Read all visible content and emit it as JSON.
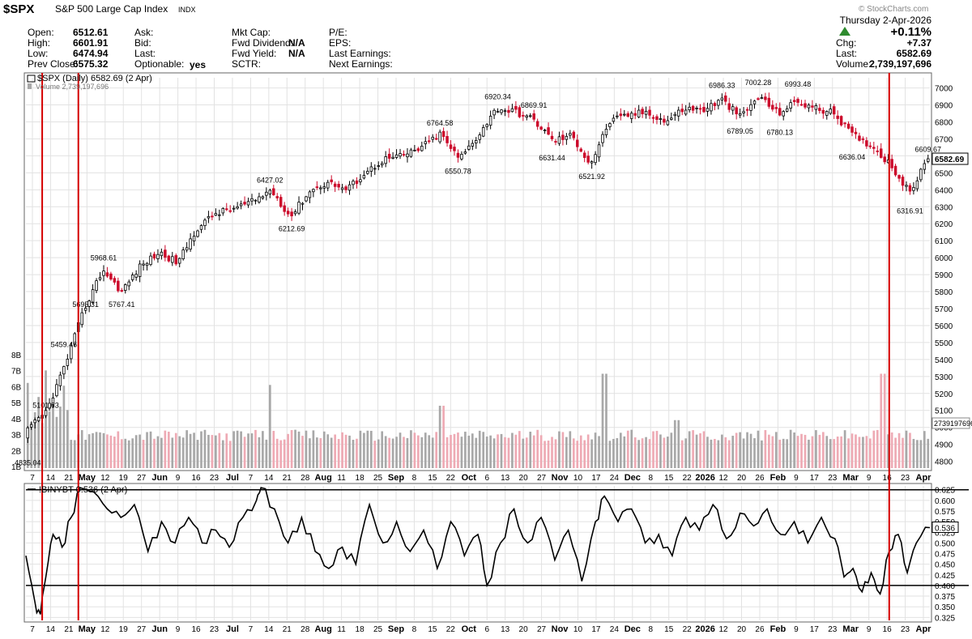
{
  "header": {
    "symbol": "$SPX",
    "name": "S&P 500 Large Cap Index",
    "exchange": "INDX",
    "watermark": "© StockCharts.com",
    "date": "Thursday  2-Apr-2026",
    "change_pct": "+0.11%",
    "fields": {
      "open_label": "Open:",
      "open_value": "6512.61",
      "high_label": "High:",
      "high_value": "6601.91",
      "low_label": "Low:",
      "low_value": "6474.94",
      "prev_label": "Prev Close:",
      "prev_value": "6575.32",
      "ask_label": "Ask:",
      "bid_label": "Bid:",
      "last_label": "Last:",
      "optionable_label": "Optionable:",
      "optionable_value": "yes",
      "mktcap_label": "Mkt Cap:",
      "fwddiv_label": "Fwd Dividend:",
      "fwddiv_value": "N/A",
      "fwdyield_label": "Fwd Yield:",
      "fwdyield_value": "N/A",
      "sctr_label": "SCTR:",
      "pe_label": "P/E:",
      "eps_label": "EPS:",
      "lastearn_label": "Last Earnings:",
      "nextearn_label": "Next Earnings:",
      "chg_label": "Chg:",
      "chg_value": "+7.37",
      "last2_label": "Last:",
      "last2_value": "6582.69",
      "volume_label": "Volume:",
      "volume_value": "2,739,197,696"
    },
    "legend_main": "$SPX (Daily) 6582.69 (2 Apr)",
    "legend_volume": "Volume 2,739,197,696",
    "legend_indicator": "!BINYBT 0.536 (2 Apr)"
  },
  "colors": {
    "up": "#000000",
    "down": "#cc0a2b",
    "volume_up": "#a8a8a8",
    "volume_down": "#eeaab4",
    "marker_line": "#d40000",
    "grid": "#e2e2e2"
  },
  "chart_data": [
    {
      "type": "candlestick",
      "title": "$SPX (Daily) 6582.69 (2 Apr)",
      "y_ticks": [
        4800,
        4900,
        5000,
        5100,
        5200,
        5300,
        5400,
        5500,
        5600,
        5700,
        5800,
        5900,
        6000,
        6100,
        6200,
        6300,
        6400,
        6500,
        6600,
        6700,
        6800,
        6900,
        7000
      ],
      "ylim": [
        4760,
        7060
      ],
      "last_price_label": "6582.69",
      "keypoints": [
        {
          "label": "4835.04",
          "close": 4982
        },
        {
          "label": "5101.63",
          "close": 5095
        },
        {
          "label": "5459.46",
          "close": 5370
        },
        {
          "label": "5695.31",
          "close": 5695
        },
        {
          "label": "5968.61",
          "close": 5930
        },
        {
          "label": "5767.41",
          "close": 5800
        },
        {
          "label": "",
          "close": 5950
        },
        {
          "label": "",
          "close": 6030
        },
        {
          "label": "",
          "close": 5970
        },
        {
          "label": "",
          "close": 6170
        },
        {
          "label": "",
          "close": 6260
        },
        {
          "label": "",
          "close": 6290
        },
        {
          "label": "",
          "close": 6330
        },
        {
          "label": "6427.02",
          "close": 6400
        },
        {
          "label": "6212.69",
          "close": 6240
        },
        {
          "label": "",
          "close": 6390
        },
        {
          "label": "",
          "close": 6445
        },
        {
          "label": "",
          "close": 6400
        },
        {
          "label": "",
          "close": 6500
        },
        {
          "label": "",
          "close": 6580
        },
        {
          "label": "",
          "close": 6600
        },
        {
          "label": "",
          "close": 6650
        },
        {
          "label": "6764.58",
          "close": 6730
        },
        {
          "label": "6550.78",
          "close": 6580
        },
        {
          "label": "",
          "close": 6720
        },
        {
          "label": "6920.34",
          "close": 6880
        },
        {
          "label": "",
          "close": 6860
        },
        {
          "label": "6869.91",
          "close": 6810
        },
        {
          "label": "6631.44",
          "close": 6690
        },
        {
          "label": "",
          "close": 6720
        },
        {
          "label": "6521.92",
          "close": 6550
        },
        {
          "label": "",
          "close": 6800
        },
        {
          "label": "",
          "close": 6840
        },
        {
          "label": "",
          "close": 6860
        },
        {
          "label": "",
          "close": 6800
        },
        {
          "label": "",
          "close": 6880
        },
        {
          "label": "",
          "close": 6870
        },
        {
          "label": "6986.33",
          "close": 6930
        },
        {
          "label": "6789.05",
          "close": 6830
        },
        {
          "label": "7002.28",
          "close": 6950
        },
        {
          "label": "6780.13",
          "close": 6850
        },
        {
          "label": "6993.48",
          "close": 6920
        },
        {
          "label": "",
          "close": 6880
        },
        {
          "label": "",
          "close": 6850
        },
        {
          "label": "6636.04",
          "close": 6720
        },
        {
          "label": "",
          "close": 6660
        },
        {
          "label": "",
          "close": 6550
        },
        {
          "label": "6316.91",
          "close": 6380
        },
        {
          "label": "6609.67",
          "close": 6582.69
        }
      ]
    },
    {
      "type": "bar",
      "title": "Volume 2,739,197,696",
      "y_ticks": [
        1,
        2,
        3,
        4,
        5,
        6,
        7,
        8
      ],
      "y_tick_labels": [
        "1B",
        "2B",
        "3B",
        "4B",
        "5B",
        "6B",
        "7B",
        "8B"
      ],
      "ylim": [
        0.9,
        8.9
      ],
      "unit": "billions",
      "last_value_label": "2739197696",
      "spikes": [
        {
          "pos": 0.27,
          "value": 6.1
        },
        {
          "pos": 0.46,
          "value": 4.8
        },
        {
          "pos": 0.64,
          "value": 6.8
        },
        {
          "pos": 0.72,
          "value": 3.9
        },
        {
          "pos": 0.95,
          "value": 6.8
        }
      ]
    },
    {
      "type": "line",
      "title": "!BINYBT 0.536 (2 Apr)",
      "y_ticks": [
        0.325,
        0.35,
        0.375,
        0.4,
        0.425,
        0.45,
        0.475,
        0.5,
        0.525,
        0.55,
        0.575,
        0.6,
        0.625
      ],
      "ylim": [
        0.318,
        0.634
      ],
      "last_value": 0.536,
      "last_value_label": "0.536",
      "reference_lines": [
        0.4,
        0.625
      ],
      "keypoints": [
        {
          "pos": 0.0,
          "value": 0.47
        },
        {
          "pos": 0.01,
          "value": 0.36
        },
        {
          "pos": 0.016,
          "value": 0.332
        },
        {
          "pos": 0.022,
          "value": 0.42
        },
        {
          "pos": 0.03,
          "value": 0.52
        },
        {
          "pos": 0.04,
          "value": 0.49
        },
        {
          "pos": 0.05,
          "value": 0.56
        },
        {
          "pos": 0.06,
          "value": 0.63
        },
        {
          "pos": 0.075,
          "value": 0.62
        },
        {
          "pos": 0.09,
          "value": 0.58
        },
        {
          "pos": 0.105,
          "value": 0.56
        },
        {
          "pos": 0.12,
          "value": 0.59
        },
        {
          "pos": 0.135,
          "value": 0.48
        },
        {
          "pos": 0.15,
          "value": 0.55
        },
        {
          "pos": 0.165,
          "value": 0.5
        },
        {
          "pos": 0.18,
          "value": 0.56
        },
        {
          "pos": 0.195,
          "value": 0.5
        },
        {
          "pos": 0.21,
          "value": 0.53
        },
        {
          "pos": 0.225,
          "value": 0.49
        },
        {
          "pos": 0.24,
          "value": 0.56
        },
        {
          "pos": 0.255,
          "value": 0.6
        },
        {
          "pos": 0.26,
          "value": 0.63
        },
        {
          "pos": 0.275,
          "value": 0.58
        },
        {
          "pos": 0.29,
          "value": 0.5
        },
        {
          "pos": 0.305,
          "value": 0.56
        },
        {
          "pos": 0.32,
          "value": 0.48
        },
        {
          "pos": 0.335,
          "value": 0.44
        },
        {
          "pos": 0.35,
          "value": 0.49
        },
        {
          "pos": 0.365,
          "value": 0.45
        },
        {
          "pos": 0.38,
          "value": 0.59
        },
        {
          "pos": 0.395,
          "value": 0.5
        },
        {
          "pos": 0.41,
          "value": 0.55
        },
        {
          "pos": 0.425,
          "value": 0.48
        },
        {
          "pos": 0.44,
          "value": 0.53
        },
        {
          "pos": 0.455,
          "value": 0.44
        },
        {
          "pos": 0.47,
          "value": 0.55
        },
        {
          "pos": 0.485,
          "value": 0.47
        },
        {
          "pos": 0.5,
          "value": 0.52
        },
        {
          "pos": 0.51,
          "value": 0.4
        },
        {
          "pos": 0.525,
          "value": 0.5
        },
        {
          "pos": 0.54,
          "value": 0.58
        },
        {
          "pos": 0.555,
          "value": 0.5
        },
        {
          "pos": 0.57,
          "value": 0.56
        },
        {
          "pos": 0.585,
          "value": 0.46
        },
        {
          "pos": 0.6,
          "value": 0.53
        },
        {
          "pos": 0.615,
          "value": 0.41
        },
        {
          "pos": 0.63,
          "value": 0.55
        },
        {
          "pos": 0.64,
          "value": 0.61
        },
        {
          "pos": 0.655,
          "value": 0.55
        },
        {
          "pos": 0.67,
          "value": 0.58
        },
        {
          "pos": 0.685,
          "value": 0.5
        },
        {
          "pos": 0.7,
          "value": 0.52
        },
        {
          "pos": 0.715,
          "value": 0.47
        },
        {
          "pos": 0.73,
          "value": 0.56
        },
        {
          "pos": 0.745,
          "value": 0.53
        },
        {
          "pos": 0.76,
          "value": 0.59
        },
        {
          "pos": 0.775,
          "value": 0.51
        },
        {
          "pos": 0.79,
          "value": 0.57
        },
        {
          "pos": 0.805,
          "value": 0.54
        },
        {
          "pos": 0.82,
          "value": 0.58
        },
        {
          "pos": 0.835,
          "value": 0.52
        },
        {
          "pos": 0.85,
          "value": 0.55
        },
        {
          "pos": 0.865,
          "value": 0.5
        },
        {
          "pos": 0.88,
          "value": 0.56
        },
        {
          "pos": 0.895,
          "value": 0.51
        },
        {
          "pos": 0.905,
          "value": 0.42
        },
        {
          "pos": 0.915,
          "value": 0.44
        },
        {
          "pos": 0.925,
          "value": 0.385
        },
        {
          "pos": 0.935,
          "value": 0.43
        },
        {
          "pos": 0.945,
          "value": 0.38
        },
        {
          "pos": 0.955,
          "value": 0.48
        },
        {
          "pos": 0.965,
          "value": 0.52
        },
        {
          "pos": 0.975,
          "value": 0.43
        },
        {
          "pos": 0.985,
          "value": 0.5
        },
        {
          "pos": 1.0,
          "value": 0.536
        }
      ]
    }
  ],
  "x_axis": {
    "ticks": [
      "7",
      "14",
      "21",
      "May",
      "12",
      "19",
      "27",
      "Jun",
      "9",
      "16",
      "23",
      "Jul",
      "7",
      "14",
      "21",
      "28",
      "Aug",
      "11",
      "18",
      "25",
      "Sep",
      "8",
      "15",
      "22",
      "Oct",
      "6",
      "13",
      "20",
      "27",
      "Nov",
      "10",
      "17",
      "24",
      "Dec",
      "8",
      "15",
      "22",
      "2026",
      "12",
      "20",
      "26",
      "Feb",
      "9",
      "17",
      "23",
      "Mar",
      "9",
      "16",
      "23",
      "Apr"
    ],
    "bold_ticks": [
      "May",
      "Jun",
      "Jul",
      "Aug",
      "Sep",
      "Oct",
      "Nov",
      "Dec",
      "2026",
      "Feb",
      "Mar",
      "Apr"
    ]
  },
  "markers": [
    {
      "pos": 0.018
    },
    {
      "pos": 0.058
    },
    {
      "pos": 0.955
    }
  ]
}
